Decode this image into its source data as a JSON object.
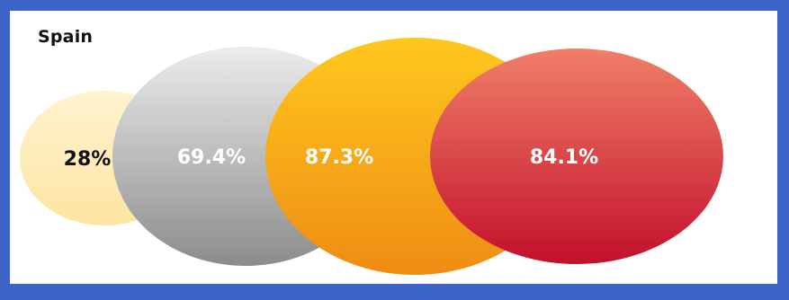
{
  "chart_data": {
    "type": "bubble",
    "title": "Spain",
    "values": [
      28,
      69.4,
      87.3,
      84.1
    ],
    "labels": [
      "28%",
      "69.4%",
      "87.3%",
      "84.1%"
    ],
    "colors": [
      [
        "#fff3cf",
        "#fde4a2"
      ],
      [
        "#ececec",
        "#8c8c8c"
      ],
      [
        "#ffc81e",
        "#ef8c14"
      ],
      [
        "#f07f68",
        "#c3102c"
      ]
    ],
    "label_colors": [
      "#111111",
      "#ffffff",
      "#ffffff",
      "#ffffff"
    ],
    "background": "#ffffff",
    "border_color": "#3c64c8"
  }
}
